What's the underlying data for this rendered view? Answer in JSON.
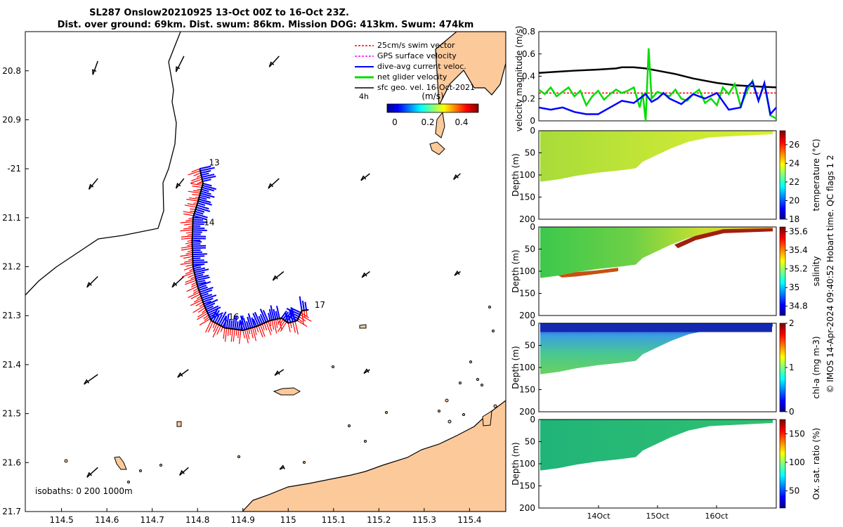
{
  "header": {
    "title_line1": "SL287 Onslow20210925 13-Oct 00Z to 16-Oct 23Z.",
    "title_line2": "Dist. over ground: 69km. Dist. swum: 86km. Mission DOG: 413km. Swum: 474km"
  },
  "colors": {
    "land": "#fcc99b",
    "swim": "#ff0000",
    "gps": "#ff00ff",
    "current": "#0000ff",
    "net": "#00dd00",
    "geo": "#000000"
  },
  "chart_data": [
    {
      "id": "map",
      "type": "map",
      "xlim": [
        114.42,
        115.48
      ],
      "ylim": [
        -21.7,
        -20.72
      ],
      "x_ticks": [
        114.5,
        114.6,
        114.7,
        114.8,
        114.9,
        115,
        115.1,
        115.2,
        115.3,
        115.4
      ],
      "x_tick_labels": [
        "114.5",
        "114.6",
        "114.7",
        "114.8",
        "114.9",
        "115",
        "115.1",
        "115.2",
        "115.3",
        "115.4"
      ],
      "y_ticks": [
        -20.8,
        -20.9,
        -21,
        -21.1,
        -21.2,
        -21.3,
        -21.4,
        -21.5,
        -21.6,
        -21.7
      ],
      "y_tick_labels": [
        "20.8",
        "20.9",
        "-21",
        "21.1",
        "21.2",
        "21.3",
        "21.4",
        "21.5",
        "21.6",
        "21.7"
      ],
      "legend": {
        "position": "top-right",
        "entries": [
          "25cm/s swim vector",
          "GPS surface velocity",
          "dive-avg current veloc.",
          "net glider velocity",
          "sfc geo. vel. 16-Oct-2021"
        ],
        "time_label": "4h",
        "units": "(m/s)",
        "colorbar_ticks": [
          "0",
          "0.2",
          "0.4"
        ]
      },
      "day_labels": [
        {
          "label": "13",
          "lon": 114.825,
          "lat": -20.993
        },
        {
          "label": "14",
          "lon": 114.814,
          "lat": -21.115
        },
        {
          "label": "16",
          "lon": 114.868,
          "lat": -21.308
        },
        {
          "label": "17",
          "lon": 115.058,
          "lat": -21.284
        }
      ],
      "isobath_label": "isobaths: 0   200  1000m",
      "track": [
        [
          114.805,
          -21.0
        ],
        [
          114.812,
          -21.03
        ],
        [
          114.8,
          -21.07
        ],
        [
          114.79,
          -21.1
        ],
        [
          114.788,
          -21.15
        ],
        [
          114.79,
          -21.2
        ],
        [
          114.8,
          -21.24
        ],
        [
          114.815,
          -21.28
        ],
        [
          114.83,
          -21.31
        ],
        [
          114.86,
          -21.325
        ],
        [
          114.9,
          -21.33
        ],
        [
          114.93,
          -21.322
        ],
        [
          114.96,
          -21.31
        ],
        [
          114.985,
          -21.305
        ],
        [
          115.0,
          -21.315
        ],
        [
          115.02,
          -21.31
        ],
        [
          115.03,
          -21.29
        ],
        [
          115.045,
          -21.288
        ]
      ],
      "geo_vectors": [
        [
          114.58,
          -20.78,
          -0.25,
          -0.7
        ],
        [
          114.77,
          -20.77,
          -0.4,
          -0.8
        ],
        [
          114.98,
          -20.77,
          -0.5,
          -0.55
        ],
        [
          114.58,
          -21.02,
          -0.45,
          -0.55
        ],
        [
          114.77,
          -21.02,
          -0.4,
          -0.5
        ],
        [
          114.98,
          -21.02,
          -0.55,
          -0.5
        ],
        [
          115.18,
          -21.01,
          -0.45,
          -0.35
        ],
        [
          115.38,
          -21.01,
          -0.35,
          -0.3
        ],
        [
          114.58,
          -21.22,
          -0.55,
          -0.55
        ],
        [
          114.77,
          -21.22,
          -0.6,
          -0.55
        ],
        [
          114.99,
          -21.21,
          -0.55,
          -0.45
        ],
        [
          115.18,
          -21.21,
          -0.4,
          -0.3
        ],
        [
          115.38,
          -21.21,
          -0.3,
          -0.2
        ],
        [
          114.58,
          -21.42,
          -0.7,
          -0.5
        ],
        [
          114.78,
          -21.41,
          -0.55,
          -0.4
        ],
        [
          114.99,
          -21.41,
          -0.45,
          -0.3
        ],
        [
          115.18,
          -21.41,
          -0.3,
          -0.2
        ],
        [
          114.58,
          -21.61,
          -0.55,
          -0.5
        ],
        [
          114.78,
          -21.61,
          -0.45,
          -0.4
        ],
        [
          114.99,
          -21.61,
          -0.2,
          -0.1
        ]
      ]
    },
    {
      "id": "velocity",
      "type": "line",
      "ylabel": "velocity magnitude (m/s)",
      "xlim": [
        13.0,
        17.0
      ],
      "ylim": [
        0,
        0.8
      ],
      "y_ticks": [
        "0",
        "0.2",
        "0.4",
        "0.6",
        "0.8"
      ],
      "series": [
        {
          "color": "#000000",
          "x": [
            13.0,
            13.3,
            13.6,
            14.0,
            14.3,
            14.4,
            14.6,
            14.8,
            15.0,
            15.3,
            15.6,
            16.0,
            16.3,
            16.6,
            17.0
          ],
          "y": [
            0.43,
            0.44,
            0.45,
            0.46,
            0.47,
            0.48,
            0.48,
            0.47,
            0.45,
            0.42,
            0.38,
            0.34,
            0.32,
            0.31,
            0.3
          ]
        },
        {
          "color": "#ff0000",
          "x": [
            13.0,
            14.0,
            15.0,
            16.0,
            17.0
          ],
          "y": [
            0.25,
            0.25,
            0.25,
            0.25,
            0.25
          ]
        },
        {
          "color": "#00dd00",
          "x": [
            13.0,
            13.1,
            13.2,
            13.3,
            13.4,
            13.5,
            13.6,
            13.7,
            13.8,
            13.9,
            14.0,
            14.1,
            14.2,
            14.3,
            14.4,
            14.5,
            14.6,
            14.7,
            14.75,
            14.8,
            14.85,
            14.9,
            15.0,
            15.1,
            15.2,
            15.3,
            15.4,
            15.5,
            15.6,
            15.7,
            15.8,
            15.9,
            16.0,
            16.1,
            16.2,
            16.3,
            16.4,
            16.5,
            16.6,
            16.7,
            16.8,
            16.9,
            17.0
          ],
          "y": [
            0.28,
            0.24,
            0.3,
            0.22,
            0.26,
            0.3,
            0.22,
            0.27,
            0.14,
            0.22,
            0.27,
            0.19,
            0.24,
            0.28,
            0.25,
            0.27,
            0.3,
            0.12,
            0.25,
            0.0,
            0.65,
            0.2,
            0.26,
            0.24,
            0.22,
            0.28,
            0.2,
            0.18,
            0.24,
            0.28,
            0.16,
            0.2,
            0.14,
            0.3,
            0.24,
            0.33,
            0.13,
            0.26,
            0.36,
            0.18,
            0.33,
            0.05,
            0.02
          ]
        },
        {
          "color": "#0000ff",
          "x": [
            13.0,
            13.2,
            13.4,
            13.6,
            13.8,
            14.0,
            14.2,
            14.4,
            14.6,
            14.8,
            14.9,
            15.0,
            15.1,
            15.2,
            15.4,
            15.6,
            15.8,
            16.0,
            16.2,
            16.4,
            16.5,
            16.6,
            16.7,
            16.8,
            16.9,
            17.0
          ],
          "y": [
            0.12,
            0.1,
            0.12,
            0.08,
            0.06,
            0.06,
            0.12,
            0.18,
            0.16,
            0.24,
            0.17,
            0.2,
            0.25,
            0.2,
            0.15,
            0.24,
            0.2,
            0.25,
            0.1,
            0.12,
            0.3,
            0.35,
            0.18,
            0.34,
            0.06,
            0.12
          ]
        }
      ]
    },
    {
      "id": "temperature",
      "type": "heatmap",
      "ylabel": "Depth (m)",
      "cbar_label": "temperature (°C)",
      "ylim": [
        0,
        200
      ],
      "y_ticks": [
        "0",
        "50",
        "100",
        "150",
        "200"
      ],
      "cbar_ticks": [
        "18",
        "20",
        "22",
        "24",
        "26"
      ],
      "cbar_range": [
        18,
        27.5
      ]
    },
    {
      "id": "salinity",
      "type": "heatmap",
      "ylabel": "Depth (m)",
      "cbar_label": "salinity",
      "ylim": [
        0,
        200
      ],
      "y_ticks": [
        "0",
        "50",
        "100",
        "150",
        "200"
      ],
      "cbar_ticks": [
        "34.8",
        "35",
        "35.2",
        "35.4",
        "35.6"
      ],
      "cbar_range": [
        34.7,
        35.65
      ]
    },
    {
      "id": "chla",
      "type": "heatmap",
      "ylabel": "Depth (m)",
      "cbar_label": "chl-a (mg m-3)",
      "ylim": [
        0,
        200
      ],
      "y_ticks": [
        "0",
        "50",
        "100",
        "150",
        "200"
      ],
      "cbar_ticks": [
        "0",
        "1",
        "2"
      ],
      "cbar_range": [
        0,
        2
      ]
    },
    {
      "id": "oxygen",
      "type": "heatmap",
      "ylabel": "Depth (m)",
      "cbar_label": "Ox. sat. ratio (%)",
      "ylim": [
        0,
        200
      ],
      "y_ticks": [
        "0",
        "50",
        "100",
        "150",
        "200"
      ],
      "cbar_ticks": [
        "50",
        "100",
        "150"
      ],
      "cbar_range": [
        20,
        175
      ],
      "x_ticks": [
        "14Oct",
        "15Oct",
        "16Oct"
      ]
    }
  ],
  "footer": {
    "side_note": "© IMOS 14-Apr-2024 09:40:52 Hobart time. QC flags 1  2"
  }
}
